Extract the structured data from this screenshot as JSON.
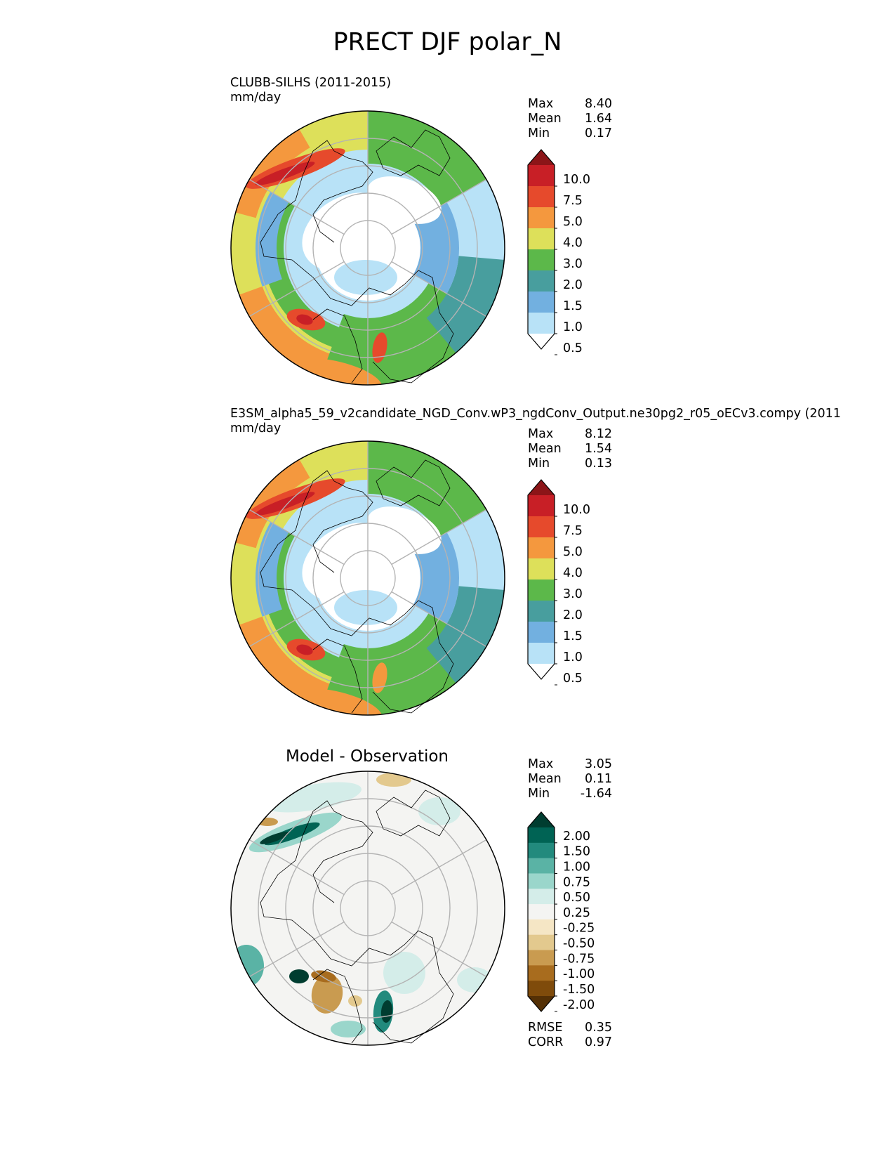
{
  "figure_title": "PRECT DJF polar_N",
  "panels": [
    {
      "id": "test",
      "title_line1": "CLUBB-SILHS (2011-2015)",
      "title_line2": "mm/day",
      "stats": [
        {
          "label": "Max",
          "value": "8.40"
        },
        {
          "label": "Mean",
          "value": "1.64"
        },
        {
          "label": "Min",
          "value": "0.17"
        }
      ]
    },
    {
      "id": "ref",
      "title_line1": "E3SM_alpha5_59_v2candidate_NGD_Conv.wP3_ngdConv_Output.ne30pg2_r05_oECv3.compy (2011",
      "title_line2": "mm/day",
      "stats": [
        {
          "label": "Max",
          "value": "8.12"
        },
        {
          "label": "Mean",
          "value": "1.54"
        },
        {
          "label": "Min",
          "value": "0.13"
        }
      ]
    },
    {
      "id": "diff",
      "title_line1": "Model - Observation",
      "stats": [
        {
          "label": "Max",
          "value": "3.05"
        },
        {
          "label": "Mean",
          "value": "0.11"
        },
        {
          "label": "Min",
          "value": "-1.64"
        }
      ],
      "metrics": [
        {
          "label": "RMSE",
          "value": "0.35"
        },
        {
          "label": "CORR",
          "value": "0.97"
        }
      ]
    }
  ],
  "precip_colorbar": {
    "ticks": [
      "10.0",
      "7.5",
      "5.0",
      "4.0",
      "3.0",
      "2.0",
      "1.5",
      "1.0",
      "0.5"
    ],
    "colors": [
      "#ffffff",
      "#b8e2f7",
      "#72b0e0",
      "#489e9e",
      "#5cb84a",
      "#dde05a",
      "#f4983e",
      "#e64a2c",
      "#c81f26",
      "#8c1518"
    ]
  },
  "diff_colorbar": {
    "ticks": [
      "2.00",
      "1.50",
      "1.00",
      "0.75",
      "0.50",
      "0.25",
      "-0.25",
      "-0.50",
      "-0.75",
      "-1.00",
      "-1.50",
      "-2.00"
    ],
    "colors": [
      "#543005",
      "#7f4b0b",
      "#a86c1e",
      "#c99b50",
      "#e3c98e",
      "#f5e6c5",
      "#f4f4f2",
      "#d4ede9",
      "#9ad6cb",
      "#5ab3a5",
      "#228a7d",
      "#006354",
      "#003d30"
    ]
  }
}
